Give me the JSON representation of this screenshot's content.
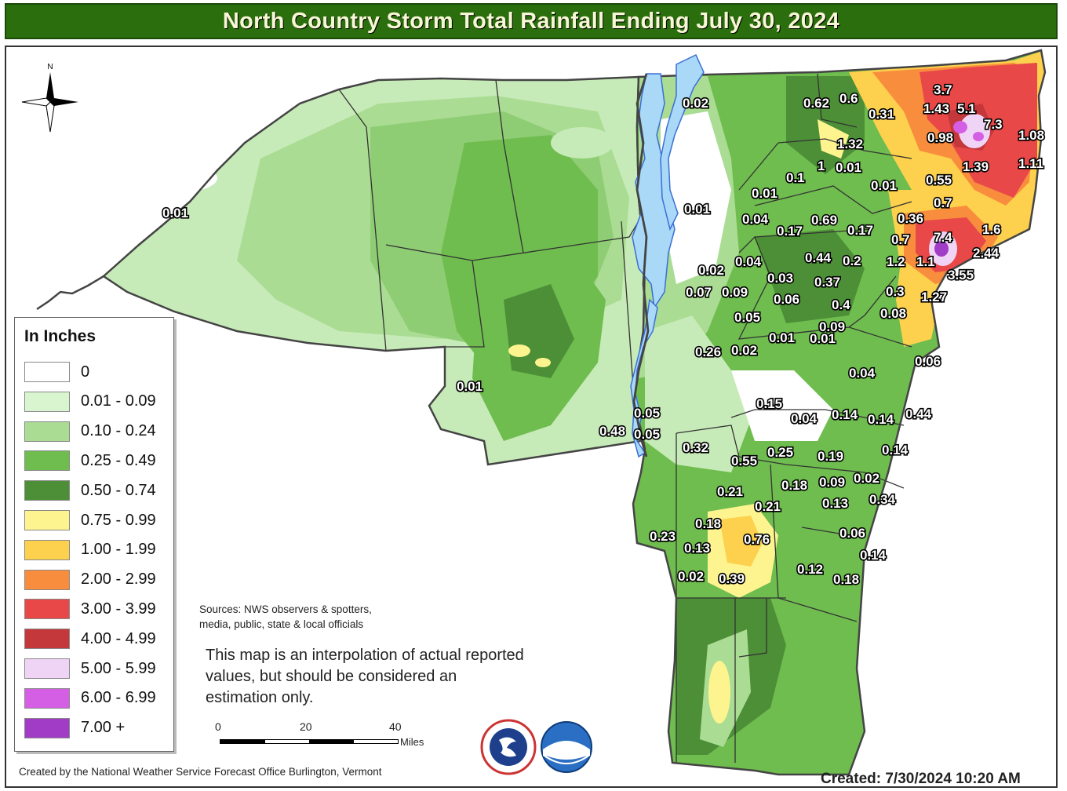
{
  "title": "North Country Storm Total Rainfall Ending July 30, 2024",
  "legend": {
    "title": "In Inches",
    "items": [
      {
        "label": "0",
        "color": "#ffffff"
      },
      {
        "label": "0.01 - 0.09",
        "color": "#d9f5cf"
      },
      {
        "label": "0.10 - 0.24",
        "color": "#aadc93"
      },
      {
        "label": "0.25 - 0.49",
        "color": "#6fbd4f"
      },
      {
        "label": "0.50 - 0.74",
        "color": "#4d8f37"
      },
      {
        "label": "0.75 - 0.99",
        "color": "#fdf490"
      },
      {
        "label": "1.00 - 1.99",
        "color": "#fdd14d"
      },
      {
        "label": "2.00 - 2.99",
        "color": "#f98d3e"
      },
      {
        "label": "3.00 - 3.99",
        "color": "#e84848"
      },
      {
        "label": "4.00 - 4.99",
        "color": "#c4373a"
      },
      {
        "label": "5.00 - 5.99",
        "color": "#f0d4f6"
      },
      {
        "label": "6.00 - 6.99",
        "color": "#d45ee4"
      },
      {
        "label": "7.00 +",
        "color": "#a03cc5"
      }
    ]
  },
  "compass": {
    "north_label": "N"
  },
  "sources": [
    "Sources: NWS observers & spotters,",
    "media, public, state & local officials"
  ],
  "disclaimer": [
    "This map is an interpolation of actual reported",
    "values, but should be considered an",
    "estimation only."
  ],
  "scale_bar": {
    "ticks": [
      "0",
      "20",
      "40"
    ],
    "unit": "Miles"
  },
  "credit": "Created by the National Weather Service Forecast Office Burlington, Vermont",
  "created": "Created: 7/30/2024 10:20 AM",
  "map_values": [
    "3.7",
    "1.43",
    "5.1",
    "7.3",
    "0.62",
    "0.6",
    "0.31",
    "0.02",
    "1.08",
    "0.98",
    "1.32",
    "1.39",
    "1.11",
    "1",
    "0.1",
    "0.01",
    "0.55",
    "0.01",
    "0.01",
    "0.7",
    "0.01",
    "0.36",
    "1.6",
    "0.04",
    "0.17",
    "0.69",
    "0.17",
    "0.7",
    "7.4",
    "2.44",
    "0.02",
    "0.04",
    "0.44",
    "0.2",
    "1.2",
    "1.1",
    "3.55",
    "0.03",
    "0.37",
    "0.07",
    "0.09",
    "0.06",
    "0.3",
    "1.27",
    "0.4",
    "0.05",
    "0.08",
    "0.09",
    "0.01",
    "0.26",
    "0.02",
    "0.06",
    "0.01",
    "0.04",
    "0.15",
    "0.04",
    "0.14",
    "0.14",
    "0.44",
    "0.05",
    "0.48",
    "0.05",
    "0.32",
    "0.55",
    "0.25",
    "0.19",
    "0.14",
    "0.18",
    "0.09",
    "0.02",
    "0.21",
    "0.34",
    "0.21",
    "0.13",
    "0.18",
    "0.76",
    "0.06",
    "0.23",
    "0.13",
    "0.14",
    "0.02",
    "0.39",
    "0.12",
    "0.18"
  ]
}
